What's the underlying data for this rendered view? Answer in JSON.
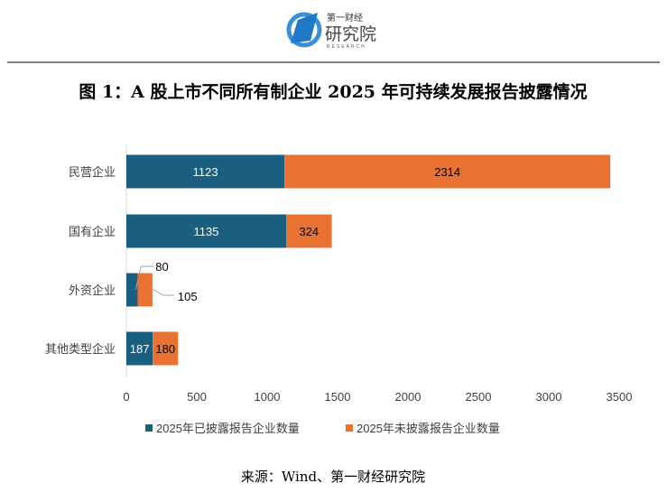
{
  "logo": {
    "text_top": "第一财经",
    "text_main": "研究院",
    "text_sub": "RESEARCH"
  },
  "chart_data": {
    "type": "bar",
    "orientation": "horizontal",
    "stacked": true,
    "title": "图 1：A 股上市不同所有制企业 2025 年可持续发展报告披露情况",
    "categories": [
      "民营企业",
      "国有企业",
      "外资企业",
      "其他类型企业"
    ],
    "series": [
      {
        "name": "2025年已披露报告企业数量",
        "color": "#1a5e80",
        "values": [
          1123,
          1135,
          80,
          187
        ]
      },
      {
        "name": "2025年未披露报告企业数量",
        "color": "#e97132",
        "values": [
          2314,
          324,
          105,
          180
        ]
      }
    ],
    "xlim": [
      0,
      3500
    ],
    "xticks": [
      0,
      500,
      1000,
      1500,
      2000,
      2500,
      3000,
      3500
    ],
    "grid": false,
    "legend": "bottom"
  },
  "source": "来源：Wind、第一财经研究院"
}
